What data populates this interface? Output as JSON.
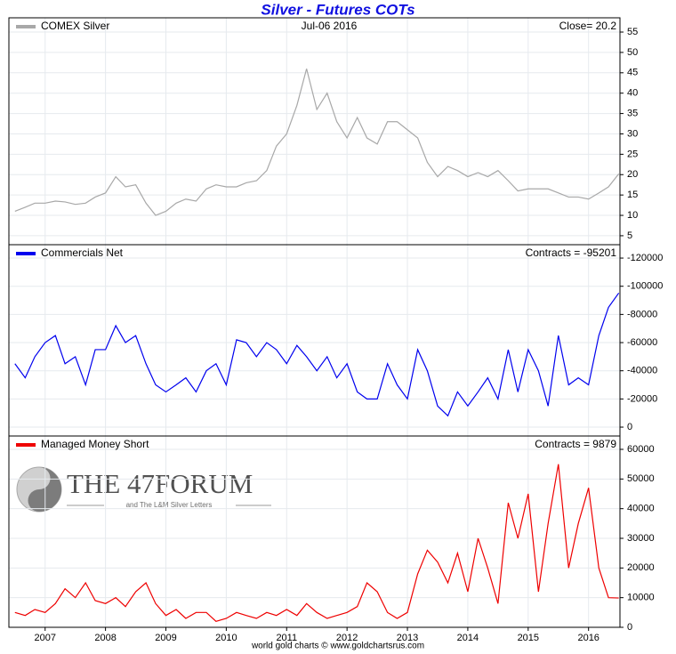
{
  "title": "Silver - Futures COTs",
  "source": "world gold charts © www.goldchartsrus.com",
  "watermark": {
    "title": "THE 47FORUM",
    "subtitle": "and The L&M Silver Letters"
  },
  "chart_data": [
    {
      "type": "line",
      "annotations": [
        "Jul-06  2016",
        "Close= 20.2"
      ],
      "x": [
        2006.5,
        2006.67,
        2006.83,
        2007,
        2007.17,
        2007.33,
        2007.5,
        2007.67,
        2007.83,
        2008,
        2008.17,
        2008.33,
        2008.5,
        2008.67,
        2008.83,
        2009,
        2009.17,
        2009.33,
        2009.5,
        2009.67,
        2009.83,
        2010,
        2010.17,
        2010.33,
        2010.5,
        2010.67,
        2010.83,
        2011,
        2011.17,
        2011.33,
        2011.5,
        2011.67,
        2011.83,
        2012,
        2012.17,
        2012.33,
        2012.5,
        2012.67,
        2012.83,
        2013,
        2013.17,
        2013.33,
        2013.5,
        2013.67,
        2013.83,
        2014,
        2014.17,
        2014.33,
        2014.5,
        2014.67,
        2014.83,
        2015,
        2015.17,
        2015.33,
        2015.5,
        2015.67,
        2015.83,
        2016,
        2016.17,
        2016.33,
        2016.5
      ],
      "series": [
        {
          "name": "COMEX Silver",
          "color": "#a8a8a8",
          "values": [
            11,
            12,
            13,
            13,
            13.5,
            13.3,
            12.7,
            13,
            14.5,
            15.5,
            19.5,
            17,
            17.5,
            13,
            10,
            11,
            13,
            14,
            13.5,
            16.5,
            17.5,
            17,
            17,
            18,
            18.5,
            21,
            27,
            30,
            37,
            46,
            36,
            40,
            33,
            29,
            34,
            29,
            27.5,
            33,
            33,
            31,
            29,
            23,
            19.5,
            22,
            21,
            19.5,
            20.5,
            19.5,
            21,
            18.5,
            16,
            16.5,
            16.5,
            16.5,
            15.5,
            14.5,
            14.5,
            14,
            15.5,
            17,
            20.2
          ]
        }
      ],
      "xlim": [
        2006.4,
        2016.52
      ],
      "ylim": [
        2.8,
        58.5
      ],
      "yticks": [
        5,
        10,
        15,
        20,
        25,
        30,
        35,
        40,
        45,
        50,
        55
      ],
      "grid": true
    },
    {
      "type": "line",
      "annotations": [
        "Contracts = -95201"
      ],
      "x": [
        2006.5,
        2006.67,
        2006.83,
        2007,
        2007.17,
        2007.33,
        2007.5,
        2007.67,
        2007.83,
        2008,
        2008.17,
        2008.33,
        2008.5,
        2008.67,
        2008.83,
        2009,
        2009.17,
        2009.33,
        2009.5,
        2009.67,
        2009.83,
        2010,
        2010.17,
        2010.33,
        2010.5,
        2010.67,
        2010.83,
        2011,
        2011.17,
        2011.33,
        2011.5,
        2011.67,
        2011.83,
        2012,
        2012.17,
        2012.33,
        2012.5,
        2012.67,
        2012.83,
        2013,
        2013.17,
        2013.33,
        2013.5,
        2013.67,
        2013.83,
        2014,
        2014.17,
        2014.33,
        2014.5,
        2014.67,
        2014.83,
        2015,
        2015.17,
        2015.33,
        2015.5,
        2015.67,
        2015.83,
        2016,
        2016.17,
        2016.33,
        2016.5
      ],
      "series": [
        {
          "name": "Commercials Net",
          "color": "#0000ee",
          "values": [
            -45000,
            -35000,
            -50000,
            -60000,
            -65000,
            -45000,
            -50000,
            -30000,
            -55000,
            -55000,
            -72000,
            -60000,
            -65000,
            -45000,
            -30000,
            -25000,
            -30000,
            -35000,
            -25000,
            -40000,
            -45000,
            -30000,
            -62000,
            -60000,
            -50000,
            -60000,
            -55000,
            -45000,
            -58000,
            -50000,
            -40000,
            -50000,
            -35000,
            -45000,
            -25000,
            -20000,
            -20000,
            -45000,
            -30000,
            -20000,
            -55000,
            -40000,
            -15000,
            -8000,
            -25000,
            -15000,
            -25000,
            -35000,
            -20000,
            -55000,
            -25000,
            -55000,
            -40000,
            -15000,
            -65000,
            -30000,
            -35000,
            -30000,
            -65000,
            -85000,
            -95201
          ]
        }
      ],
      "xlim": [
        2006.4,
        2016.52
      ],
      "ylim": [
        6300,
        -129500
      ],
      "yticks": [
        -120000,
        -100000,
        -80000,
        -60000,
        -40000,
        -20000,
        0
      ],
      "grid": true
    },
    {
      "type": "line",
      "annotations": [
        "Contracts = 9879"
      ],
      "x": [
        2006.5,
        2006.67,
        2006.83,
        2007,
        2007.17,
        2007.33,
        2007.5,
        2007.67,
        2007.83,
        2008,
        2008.17,
        2008.33,
        2008.5,
        2008.67,
        2008.83,
        2009,
        2009.17,
        2009.33,
        2009.5,
        2009.67,
        2009.83,
        2010,
        2010.17,
        2010.33,
        2010.5,
        2010.67,
        2010.83,
        2011,
        2011.17,
        2011.33,
        2011.5,
        2011.67,
        2011.83,
        2012,
        2012.17,
        2012.33,
        2012.5,
        2012.67,
        2012.83,
        2013,
        2013.17,
        2013.33,
        2013.5,
        2013.67,
        2013.83,
        2014,
        2014.17,
        2014.33,
        2014.5,
        2014.67,
        2014.83,
        2015,
        2015.17,
        2015.33,
        2015.5,
        2015.67,
        2015.83,
        2016,
        2016.17,
        2016.33,
        2016.5
      ],
      "series": [
        {
          "name": "Managed Money Short",
          "color": "#ee0000",
          "values": [
            5000,
            4000,
            6000,
            5000,
            8000,
            13000,
            10000,
            15000,
            9000,
            8000,
            10000,
            7000,
            12000,
            15000,
            8000,
            4000,
            6000,
            3000,
            5000,
            5000,
            2000,
            3000,
            5000,
            4000,
            3000,
            5000,
            4000,
            6000,
            4000,
            8000,
            5000,
            3000,
            4000,
            5000,
            7000,
            15000,
            12000,
            5000,
            3000,
            5000,
            18000,
            26000,
            22000,
            15000,
            25000,
            12000,
            30000,
            20000,
            8000,
            42000,
            30000,
            45000,
            12000,
            35000,
            55000,
            20000,
            35000,
            47000,
            20000,
            10000,
            9879
          ]
        }
      ],
      "xlim": [
        2006.4,
        2016.52
      ],
      "xticks": [
        2007,
        2008,
        2009,
        2010,
        2011,
        2012,
        2013,
        2014,
        2015,
        2016
      ],
      "ylim": [
        0,
        64500
      ],
      "yticks": [
        0,
        10000,
        20000,
        30000,
        40000,
        50000,
        60000
      ],
      "grid": true
    }
  ]
}
